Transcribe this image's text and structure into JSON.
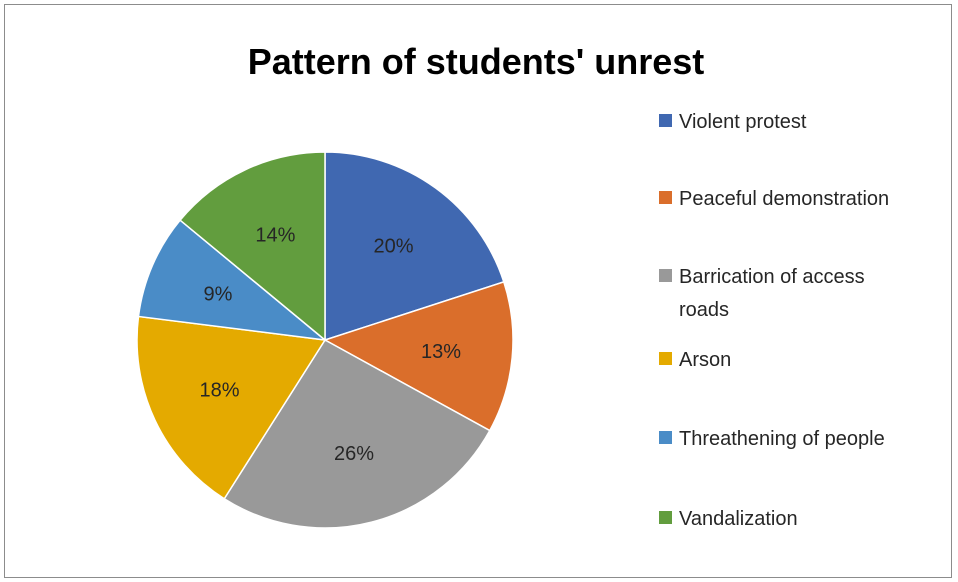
{
  "chart_data": {
    "type": "pie",
    "title": "Pattern of students' unrest",
    "legend_position": "right",
    "series": [
      {
        "values": [
          20,
          13,
          26,
          18,
          9,
          14
        ]
      }
    ],
    "categories": [
      "Violent protest",
      "Peaceful demonstration",
      "Barrication of access roads",
      "Arson",
      "Threathening of people",
      "Vandalization"
    ],
    "labels": [
      "20%",
      "13%",
      "26%",
      "18%",
      "9%",
      "14%"
    ],
    "legend": [
      {
        "lines": [
          "Violent protest"
        ]
      },
      {
        "lines": [
          "Peaceful demonstration"
        ]
      },
      {
        "lines": [
          "Barrication of access",
          "roads"
        ]
      },
      {
        "lines": [
          "Arson"
        ]
      },
      {
        "lines": [
          "Threathening of people"
        ]
      },
      {
        "lines": [
          "Vandalization"
        ]
      }
    ],
    "colors": [
      "#4068b1",
      "#da6e2b",
      "#999999",
      "#e4aa00",
      "#4a8cc7",
      "#629d3e"
    ],
    "start_angle_deg": -90,
    "direction": "clockwise"
  }
}
